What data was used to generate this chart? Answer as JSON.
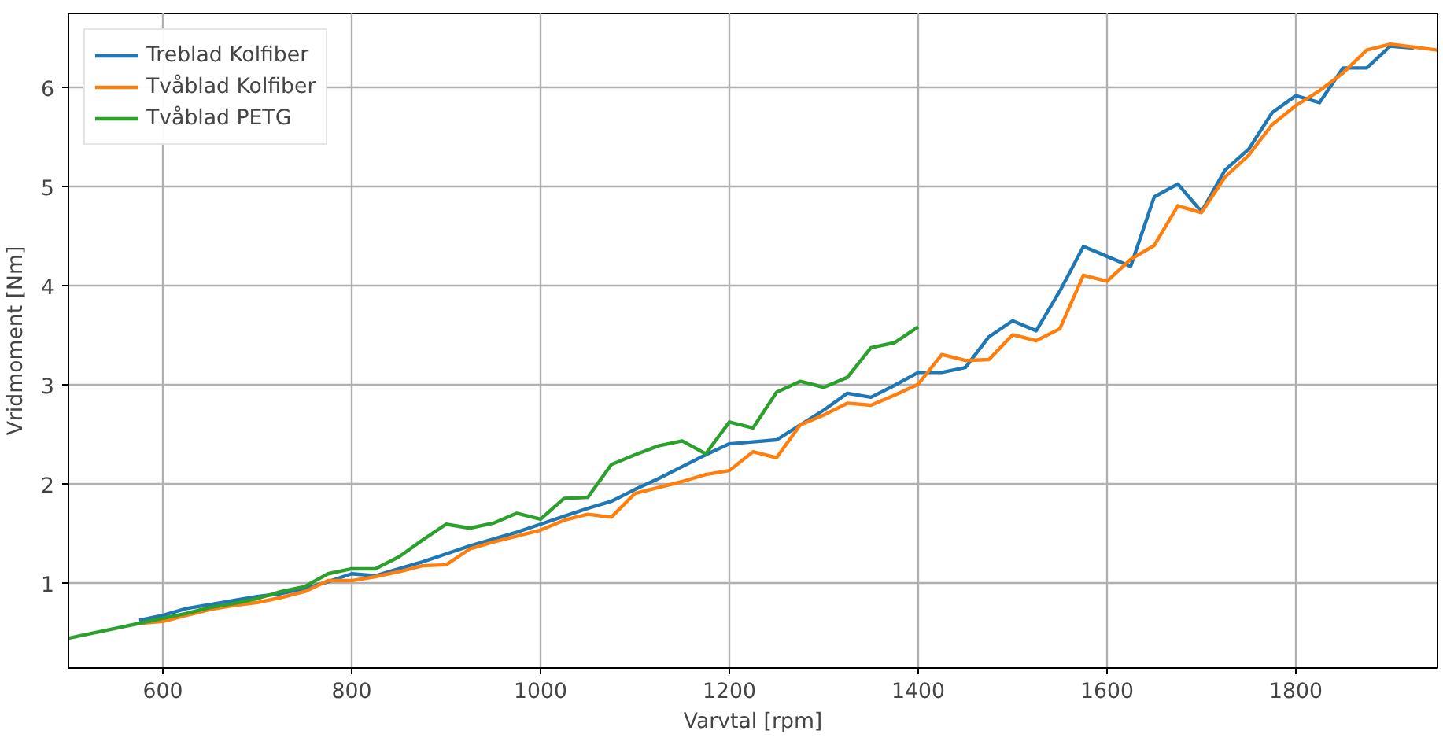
{
  "chart_data": {
    "type": "line",
    "xlabel": "Varvtal [rpm]",
    "ylabel": "Vridmoment [Nm]",
    "xlim": [
      500,
      1950
    ],
    "ylim": [
      0.15,
      6.75
    ],
    "xticks": [
      600,
      800,
      1000,
      1200,
      1400,
      1600,
      1800
    ],
    "yticks": [
      1,
      2,
      3,
      4,
      5,
      6
    ],
    "grid": true,
    "legend": "top left",
    "line_style": "solid",
    "series": [
      {
        "name": "Treblad Kolfiber",
        "color": "#1f77b4",
        "x": [
          575,
          600,
          625,
          650,
          675,
          700,
          725,
          750,
          775,
          800,
          825,
          850,
          875,
          900,
          925,
          950,
          975,
          1000,
          1025,
          1050,
          1075,
          1100,
          1125,
          1150,
          1175,
          1200,
          1225,
          1250,
          1275,
          1300,
          1325,
          1350,
          1375,
          1400,
          1425,
          1450,
          1475,
          1500,
          1525,
          1550,
          1575,
          1600,
          1625,
          1650,
          1675,
          1700,
          1725,
          1750,
          1775,
          1800,
          1825,
          1850,
          1875,
          1900,
          1925
        ],
        "values": [
          0.63,
          0.68,
          0.75,
          0.79,
          0.83,
          0.87,
          0.9,
          0.95,
          1.02,
          1.1,
          1.08,
          1.15,
          1.22,
          1.3,
          1.38,
          1.45,
          1.52,
          1.6,
          1.68,
          1.76,
          1.83,
          1.95,
          2.06,
          2.18,
          2.3,
          2.41,
          2.43,
          2.45,
          2.6,
          2.75,
          2.92,
          2.88,
          3.0,
          3.13,
          3.13,
          3.18,
          3.49,
          3.65,
          3.55,
          3.95,
          4.4,
          4.3,
          4.2,
          4.9,
          5.03,
          4.75,
          5.17,
          5.38,
          5.75,
          5.92,
          5.85,
          6.2,
          6.2,
          6.42,
          6.4
        ]
      },
      {
        "name": "Tvåblad Kolfiber",
        "color": "#ff7f0e",
        "x": [
          575,
          600,
          625,
          650,
          675,
          700,
          725,
          750,
          775,
          800,
          825,
          850,
          875,
          900,
          925,
          950,
          975,
          1000,
          1025,
          1050,
          1075,
          1100,
          1125,
          1150,
          1175,
          1200,
          1225,
          1250,
          1275,
          1300,
          1325,
          1350,
          1375,
          1400,
          1425,
          1450,
          1475,
          1500,
          1525,
          1550,
          1575,
          1600,
          1625,
          1650,
          1675,
          1700,
          1725,
          1750,
          1775,
          1800,
          1825,
          1850,
          1875,
          1900,
          1925,
          1950
        ],
        "values": [
          0.6,
          0.62,
          0.68,
          0.74,
          0.78,
          0.81,
          0.86,
          0.92,
          1.03,
          1.03,
          1.07,
          1.12,
          1.18,
          1.19,
          1.35,
          1.42,
          1.48,
          1.54,
          1.64,
          1.7,
          1.67,
          1.91,
          1.97,
          2.03,
          2.1,
          2.14,
          2.33,
          2.27,
          2.6,
          2.7,
          2.82,
          2.8,
          2.9,
          3.01,
          3.31,
          3.25,
          3.26,
          3.51,
          3.45,
          3.57,
          4.11,
          4.05,
          4.27,
          4.41,
          4.81,
          4.74,
          5.1,
          5.32,
          5.63,
          5.82,
          5.97,
          6.15,
          6.38,
          6.44,
          6.41,
          6.38
        ]
      },
      {
        "name": "Tvåblad PETG",
        "color": "#2ca02c",
        "x": [
          500,
          525,
          550,
          575,
          600,
          625,
          650,
          675,
          700,
          725,
          750,
          775,
          800,
          825,
          850,
          875,
          900,
          925,
          950,
          975,
          1000,
          1025,
          1050,
          1075,
          1100,
          1125,
          1150,
          1175,
          1200,
          1225,
          1250,
          1275,
          1300,
          1325,
          1350,
          1375,
          1400
        ],
        "values": [
          0.45,
          0.5,
          0.55,
          0.6,
          0.65,
          0.7,
          0.76,
          0.8,
          0.85,
          0.92,
          0.97,
          1.1,
          1.15,
          1.15,
          1.27,
          1.44,
          1.6,
          1.56,
          1.61,
          1.71,
          1.65,
          1.86,
          1.87,
          2.2,
          2.3,
          2.39,
          2.44,
          2.31,
          2.63,
          2.57,
          2.93,
          3.04,
          2.98,
          3.08,
          3.38,
          3.43,
          3.59
        ]
      }
    ]
  }
}
